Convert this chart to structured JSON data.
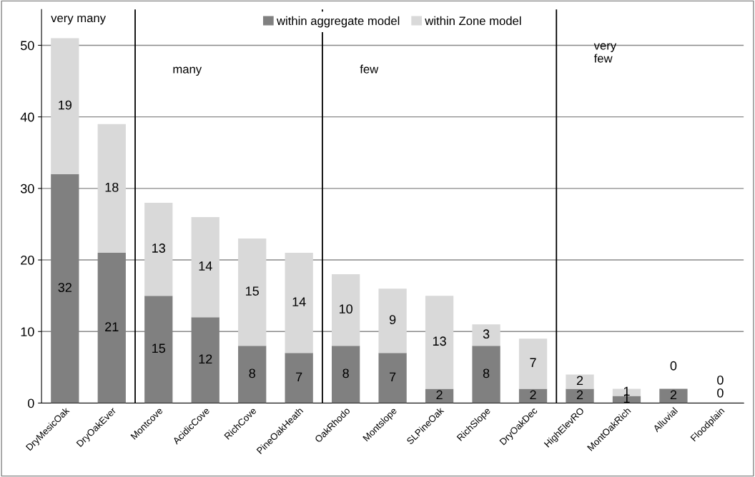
{
  "chart_data": {
    "type": "bar",
    "stacked": true,
    "categories": [
      "DryMesicOak",
      "DryOakEver",
      "Montcove",
      "AcidicCove",
      "RichCove",
      "PineOakHeath",
      "OakRhodo",
      "Montslope",
      "SLPineOak",
      "RichSlope",
      "DryOakDec",
      "HighElevRO",
      "MontOakRich",
      "Alluvial",
      "Floodplain"
    ],
    "series": [
      {
        "name": "within aggregate model",
        "color": "#808080",
        "values": [
          32,
          21,
          15,
          12,
          8,
          7,
          8,
          7,
          2,
          8,
          2,
          2,
          1,
          2,
          0
        ]
      },
      {
        "name": "within Zone model",
        "color": "#d9d9d9",
        "values": [
          19,
          18,
          13,
          14,
          15,
          14,
          10,
          9,
          13,
          3,
          7,
          2,
          1,
          0,
          0
        ]
      }
    ],
    "ylim": [
      0,
      55
    ],
    "yticks": [
      0,
      10,
      20,
      30,
      40,
      50
    ],
    "grid": "y",
    "legend": "top",
    "data_labels": true,
    "annotations": [
      "very many",
      "many",
      "few",
      "very\nfew"
    ]
  }
}
